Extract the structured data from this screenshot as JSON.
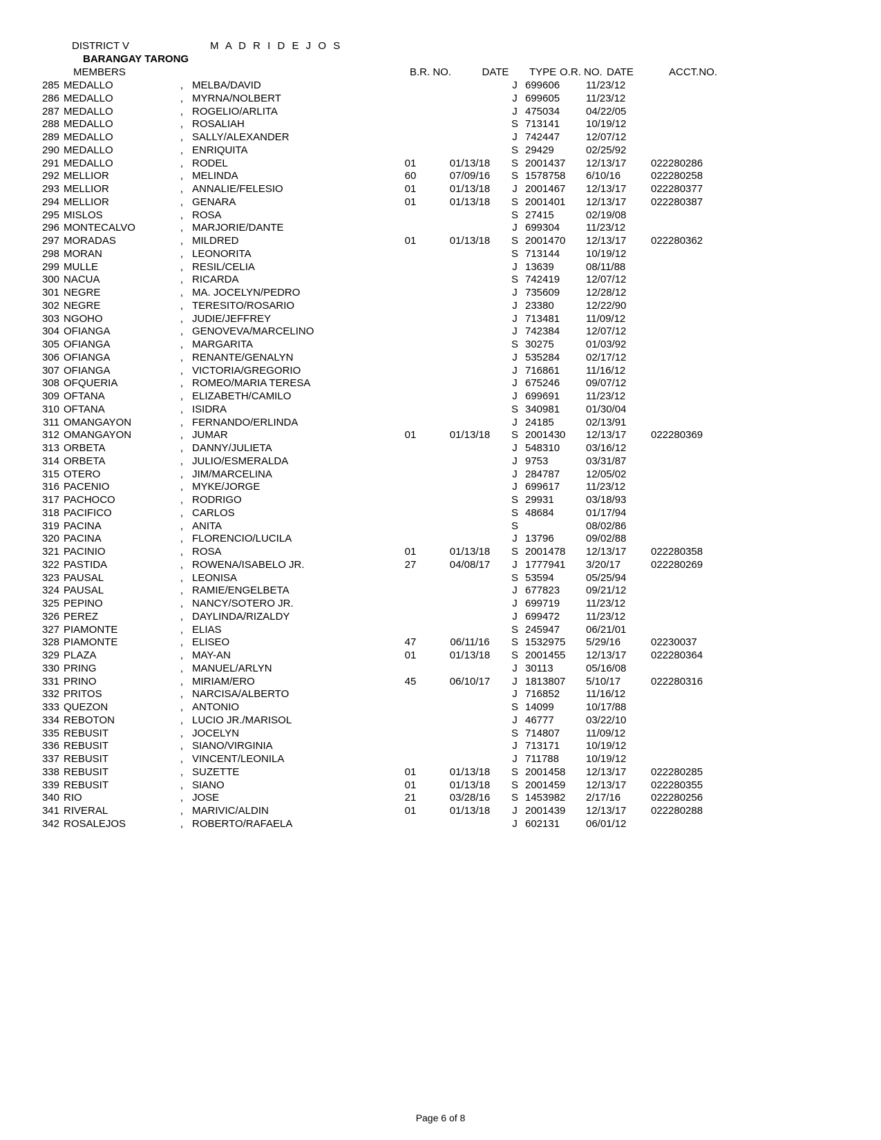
{
  "header": {
    "district_label": "DISTRICT V",
    "district_name": "M A D R I D E J O S",
    "barangay": "BARANGAY  TARONG",
    "members_label": "MEMBERS",
    "cols": {
      "brno": "B.R. NO.",
      "date": "DATE",
      "type": "TYPE",
      "orno": "O.R. NO.",
      "date2": "DATE",
      "acct": "ACCT.NO."
    }
  },
  "rows": [
    {
      "n": "285",
      "s": "MEDALLO",
      "g": "MELBA/DAVID",
      "br": "",
      "d1": "",
      "t": "J",
      "or": "699606",
      "d2": "11/23/12",
      "a": ""
    },
    {
      "n": "286",
      "s": "MEDALLO",
      "g": "MYRNA/NOLBERT",
      "br": "",
      "d1": "",
      "t": "J",
      "or": "699605",
      "d2": "11/23/12",
      "a": ""
    },
    {
      "n": "287",
      "s": "MEDALLO",
      "g": "ROGELIO/ARLITA",
      "br": "",
      "d1": "",
      "t": "J",
      "or": "475034",
      "d2": "04/22/05",
      "a": ""
    },
    {
      "n": "288",
      "s": "MEDALLO",
      "g": "ROSALIAH",
      "br": "",
      "d1": "",
      "t": "S",
      "or": "713141",
      "d2": "10/19/12",
      "a": ""
    },
    {
      "n": "289",
      "s": "MEDALLO",
      "g": "SALLY/ALEXANDER",
      "br": "",
      "d1": "",
      "t": "J",
      "or": "742447",
      "d2": "12/07/12",
      "a": ""
    },
    {
      "n": "290",
      "s": "MEDALLO",
      "g": "ENRIQUITA",
      "br": "",
      "d1": "",
      "t": "S",
      "or": "29429",
      "d2": "02/25/92",
      "a": ""
    },
    {
      "n": "291",
      "s": "MEDALLO",
      "g": "RODEL",
      "br": "01",
      "d1": "01/13/18",
      "t": "S",
      "or": "2001437",
      "d2": "12/13/17",
      "a": "022280286"
    },
    {
      "n": "292",
      "s": "MELLIOR",
      "g": "MELINDA",
      "br": "60",
      "d1": "07/09/16",
      "t": "S",
      "or": "1578758",
      "d2": "6/10/16",
      "a": "022280258"
    },
    {
      "n": "293",
      "s": "MELLIOR",
      "g": "ANNALIE/FELESIO",
      "br": "01",
      "d1": "01/13/18",
      "t": "J",
      "or": "2001467",
      "d2": "12/13/17",
      "a": "022280377"
    },
    {
      "n": "294",
      "s": "MELLIOR",
      "g": "GENARA",
      "br": "01",
      "d1": "01/13/18",
      "t": "S",
      "or": "2001401",
      "d2": "12/13/17",
      "a": "022280387"
    },
    {
      "n": "295",
      "s": "MISLOS",
      "g": "ROSA",
      "br": "",
      "d1": "",
      "t": "S",
      "or": "27415",
      "d2": "02/19/08",
      "a": ""
    },
    {
      "n": "296",
      "s": "MONTECALVO",
      "g": "MARJORIE/DANTE",
      "br": "",
      "d1": "",
      "t": "J",
      "or": "699304",
      "d2": "11/23/12",
      "a": ""
    },
    {
      "n": "297",
      "s": "MORADAS",
      "g": "MILDRED",
      "br": "01",
      "d1": "01/13/18",
      "t": "S",
      "or": "2001470",
      "d2": "12/13/17",
      "a": "022280362"
    },
    {
      "n": "298",
      "s": "MORAN",
      "g": "LEONORITA",
      "br": "",
      "d1": "",
      "t": "S",
      "or": "713144",
      "d2": "10/19/12",
      "a": ""
    },
    {
      "n": "299",
      "s": "MULLE",
      "g": "RESIL/CELIA",
      "br": "",
      "d1": "",
      "t": "J",
      "or": "13639",
      "d2": "08/11/88",
      "a": ""
    },
    {
      "n": "300",
      "s": "NACUA",
      "g": "RICARDA",
      "br": "",
      "d1": "",
      "t": "S",
      "or": "742419",
      "d2": "12/07/12",
      "a": ""
    },
    {
      "n": "301",
      "s": "NEGRE",
      "g": "MA. JOCELYN/PEDRO",
      "br": "",
      "d1": "",
      "t": "J",
      "or": "735609",
      "d2": "12/28/12",
      "a": ""
    },
    {
      "n": "302",
      "s": "NEGRE",
      "g": "TERESITO/ROSARIO",
      "br": "",
      "d1": "",
      "t": "J",
      "or": "23380",
      "d2": "12/22/90",
      "a": ""
    },
    {
      "n": "303",
      "s": "NGOHO",
      "g": "JUDIE/JEFFREY",
      "br": "",
      "d1": "",
      "t": "J",
      "or": "713481",
      "d2": "11/09/12",
      "a": ""
    },
    {
      "n": "304",
      "s": "OFIANGA",
      "g": "GENOVEVA/MARCELINO",
      "br": "",
      "d1": "",
      "t": "J",
      "or": "742384",
      "d2": "12/07/12",
      "a": ""
    },
    {
      "n": "305",
      "s": "OFIANGA",
      "g": "MARGARITA",
      "br": "",
      "d1": "",
      "t": "S",
      "or": "30275",
      "d2": "01/03/92",
      "a": ""
    },
    {
      "n": "306",
      "s": "OFIANGA",
      "g": "RENANTE/GENALYN",
      "br": "",
      "d1": "",
      "t": "J",
      "or": "535284",
      "d2": "02/17/12",
      "a": ""
    },
    {
      "n": "307",
      "s": "OFIANGA",
      "g": "VICTORIA/GREGORIO",
      "br": "",
      "d1": "",
      "t": "J",
      "or": "716861",
      "d2": "11/16/12",
      "a": ""
    },
    {
      "n": "308",
      "s": "OFQUERIA",
      "g": "ROMEO/MARIA TERESA",
      "br": "",
      "d1": "",
      "t": "J",
      "or": "675246",
      "d2": "09/07/12",
      "a": ""
    },
    {
      "n": "309",
      "s": "OFTANA",
      "g": "ELIZABETH/CAMILO",
      "br": "",
      "d1": "",
      "t": "J",
      "or": "699691",
      "d2": "11/23/12",
      "a": ""
    },
    {
      "n": "310",
      "s": "OFTANA",
      "g": "ISIDRA",
      "br": "",
      "d1": "",
      "t": "S",
      "or": "340981",
      "d2": "01/30/04",
      "a": ""
    },
    {
      "n": "311",
      "s": "OMANGAYON",
      "g": "FERNANDO/ERLINDA",
      "br": "",
      "d1": "",
      "t": "J",
      "or": "24185",
      "d2": "02/13/91",
      "a": ""
    },
    {
      "n": "312",
      "s": "OMANGAYON",
      "g": "JUMAR",
      "br": "01",
      "d1": "01/13/18",
      "t": "S",
      "or": "2001430",
      "d2": "12/13/17",
      "a": "022280369"
    },
    {
      "n": "313",
      "s": "ORBETA",
      "g": "DANNY/JULIETA",
      "br": "",
      "d1": "",
      "t": "J",
      "or": "548310",
      "d2": "03/16/12",
      "a": ""
    },
    {
      "n": "314",
      "s": "ORBETA",
      "g": "JULIO/ESMERALDA",
      "br": "",
      "d1": "",
      "t": "J",
      "or": "9753",
      "d2": "03/31/87",
      "a": ""
    },
    {
      "n": "315",
      "s": "OTERO",
      "g": "JIM/MARCELINA",
      "br": "",
      "d1": "",
      "t": "J",
      "or": "284787",
      "d2": "12/05/02",
      "a": ""
    },
    {
      "n": "316",
      "s": "PACENIO",
      "g": "MYKE/JORGE",
      "br": "",
      "d1": "",
      "t": "J",
      "or": "699617",
      "d2": "11/23/12",
      "a": ""
    },
    {
      "n": "317",
      "s": "PACHOCO",
      "g": "RODRIGO",
      "br": "",
      "d1": "",
      "t": "S",
      "or": "29931",
      "d2": "03/18/93",
      "a": ""
    },
    {
      "n": "318",
      "s": "PACIFICO",
      "g": "CARLOS",
      "br": "",
      "d1": "",
      "t": "S",
      "or": "48684",
      "d2": "01/17/94",
      "a": ""
    },
    {
      "n": "319",
      "s": "PACINA",
      "g": "ANITA",
      "br": "",
      "d1": "",
      "t": "S",
      "or": "",
      "d2": "08/02/86",
      "a": ""
    },
    {
      "n": "320",
      "s": "PACINA",
      "g": "FLORENCIO/LUCILA",
      "br": "",
      "d1": "",
      "t": "J",
      "or": "13796",
      "d2": "09/02/88",
      "a": ""
    },
    {
      "n": "321",
      "s": "PACINIO",
      "g": "ROSA",
      "br": "01",
      "d1": "01/13/18",
      "t": "S",
      "or": "2001478",
      "d2": "12/13/17",
      "a": "022280358"
    },
    {
      "n": "322",
      "s": "PASTIDA",
      "g": "ROWENA/ISABELO JR.",
      "br": "27",
      "d1": "04/08/17",
      "t": "J",
      "or": "1777941",
      "d2": "3/20/17",
      "a": "022280269"
    },
    {
      "n": "323",
      "s": "PAUSAL",
      "g": "LEONISA",
      "br": "",
      "d1": "",
      "t": "S",
      "or": "53594",
      "d2": "05/25/94",
      "a": ""
    },
    {
      "n": "324",
      "s": "PAUSAL",
      "g": "RAMIE/ENGELBETA",
      "br": "",
      "d1": "",
      "t": "J",
      "or": "677823",
      "d2": "09/21/12",
      "a": ""
    },
    {
      "n": "325",
      "s": "PEPINO",
      "g": "NANCY/SOTERO JR.",
      "br": "",
      "d1": "",
      "t": "J",
      "or": "699719",
      "d2": "11/23/12",
      "a": ""
    },
    {
      "n": "326",
      "s": "PEREZ",
      "g": "DAYLINDA/RIZALDY",
      "br": "",
      "d1": "",
      "t": "J",
      "or": "699472",
      "d2": "11/23/12",
      "a": ""
    },
    {
      "n": "327",
      "s": "PIAMONTE",
      "g": "ELIAS",
      "br": "",
      "d1": "",
      "t": "S",
      "or": "245947",
      "d2": "06/21/01",
      "a": ""
    },
    {
      "n": "328",
      "s": "PIAMONTE",
      "g": "ELISEO",
      "br": "47",
      "d1": "06/11/16",
      "t": "S",
      "or": "1532975",
      "d2": "5/29/16",
      "a": "02230037"
    },
    {
      "n": "329",
      "s": "PLAZA",
      "g": "MAY-AN",
      "br": "01",
      "d1": "01/13/18",
      "t": "S",
      "or": "2001455",
      "d2": "12/13/17",
      "a": "022280364"
    },
    {
      "n": "330",
      "s": "PRING",
      "g": "MANUEL/ARLYN",
      "br": "",
      "d1": "",
      "t": "J",
      "or": "30113",
      "d2": "05/16/08",
      "a": ""
    },
    {
      "n": "331",
      "s": "PRINO",
      "g": "MIRIAM/ERO",
      "br": "45",
      "d1": "06/10/17",
      "t": "J",
      "or": "1813807",
      "d2": "5/10/17",
      "a": "022280316"
    },
    {
      "n": "332",
      "s": "PRITOS",
      "g": "NARCISA/ALBERTO",
      "br": "",
      "d1": "",
      "t": "J",
      "or": "716852",
      "d2": "11/16/12",
      "a": ""
    },
    {
      "n": "333",
      "s": "QUEZON",
      "g": "ANTONIO",
      "br": "",
      "d1": "",
      "t": "S",
      "or": "14099",
      "d2": "10/17/88",
      "a": ""
    },
    {
      "n": "334",
      "s": "REBOTON",
      "g": "LUCIO JR./MARISOL",
      "br": "",
      "d1": "",
      "t": "J",
      "or": "46777",
      "d2": "03/22/10",
      "a": ""
    },
    {
      "n": "335",
      "s": "REBUSIT",
      "g": "JOCELYN",
      "br": "",
      "d1": "",
      "t": "S",
      "or": "714807",
      "d2": "11/09/12",
      "a": ""
    },
    {
      "n": "336",
      "s": "REBUSIT",
      "g": "SIANO/VIRGINIA",
      "br": "",
      "d1": "",
      "t": "J",
      "or": "713171",
      "d2": "10/19/12",
      "a": ""
    },
    {
      "n": "337",
      "s": "REBUSIT",
      "g": "VINCENT/LEONILA",
      "br": "",
      "d1": "",
      "t": "J",
      "or": "711788",
      "d2": "10/19/12",
      "a": ""
    },
    {
      "n": "338",
      "s": "REBUSIT",
      "g": "SUZETTE",
      "br": "01",
      "d1": "01/13/18",
      "t": "S",
      "or": "2001458",
      "d2": "12/13/17",
      "a": "022280285"
    },
    {
      "n": "339",
      "s": "REBUSIT",
      "g": "SIANO",
      "br": "01",
      "d1": "01/13/18",
      "t": "S",
      "or": "2001459",
      "d2": "12/13/17",
      "a": "022280355"
    },
    {
      "n": "340",
      "s": "RIO",
      "g": "JOSE",
      "br": "21",
      "d1": "03/28/16",
      "t": "S",
      "or": "1453982",
      "d2": "2/17/16",
      "a": "022280256"
    },
    {
      "n": "341",
      "s": "RIVERAL",
      "g": "MARIVIC/ALDIN",
      "br": "01",
      "d1": "01/13/18",
      "t": "J",
      "or": "2001439",
      "d2": "12/13/17",
      "a": "022280288"
    },
    {
      "n": "342",
      "s": "ROSALEJOS",
      "g": "ROBERTO/RAFAELA",
      "br": "",
      "d1": "",
      "t": "J",
      "or": "602131",
      "d2": "06/01/12",
      "a": ""
    }
  ],
  "footer": "Page 6 of 8",
  "comma": ","
}
